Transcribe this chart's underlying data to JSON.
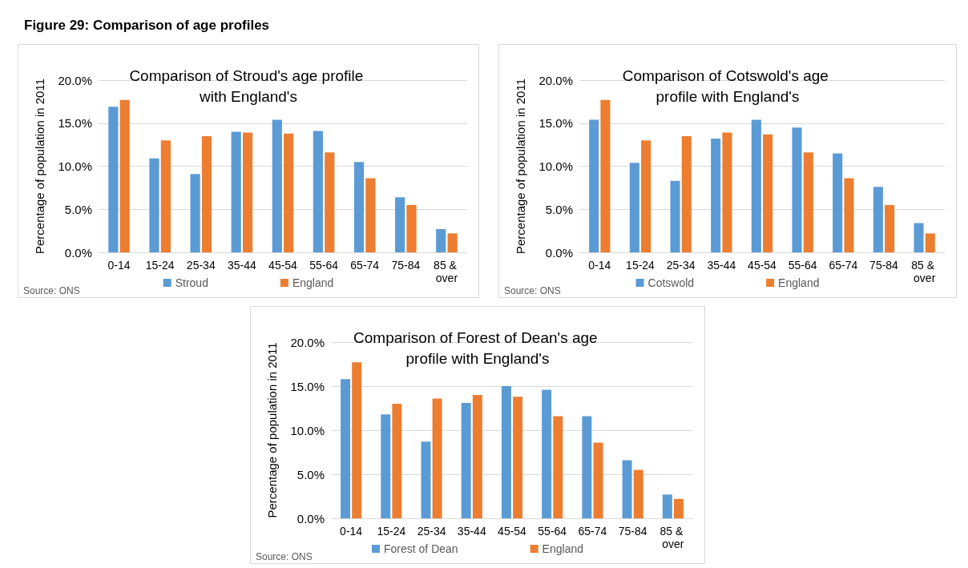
{
  "chart_data": [
    {
      "type": "bar",
      "title": "Comparison of Stroud's age profile with England's",
      "ylabel": "Percentage of population in 2011",
      "categories": [
        "0-14",
        "15-24",
        "25-34",
        "35-44",
        "45-54",
        "55-64",
        "65-74",
        "75-84",
        "85 & over"
      ],
      "series": [
        {
          "name": "Stroud",
          "color": "#5b9bd5",
          "values": [
            16.9,
            10.9,
            9.1,
            14.0,
            15.4,
            14.1,
            10.5,
            6.4,
            2.7
          ]
        },
        {
          "name": "England",
          "color": "#ed7d31",
          "values": [
            17.7,
            13.0,
            13.5,
            13.9,
            13.8,
            11.6,
            8.6,
            5.5,
            2.2
          ]
        }
      ],
      "ylim": [
        0,
        20
      ],
      "yticks": [
        {
          "value": 0,
          "label": "0.0%"
        },
        {
          "value": 5,
          "label": "5.0%"
        },
        {
          "value": 10,
          "label": "10.0%"
        },
        {
          "value": 15,
          "label": "15.0%"
        },
        {
          "value": 20,
          "label": "20.0%"
        }
      ],
      "grid": "y",
      "legend": "bottom",
      "annotations": [
        "Figure 29: Comparison of age profiles",
        "Source: ONS"
      ]
    },
    {
      "type": "bar",
      "title": "Comparison of Cotswold's age profile with England's",
      "ylabel": "Percentage of population in 2011",
      "categories": [
        "0-14",
        "15-24",
        "25-34",
        "35-44",
        "45-54",
        "55-64",
        "65-74",
        "75-84",
        "85 & over"
      ],
      "series": [
        {
          "name": "Cotswold",
          "color": "#5b9bd5",
          "values": [
            15.4,
            10.4,
            8.3,
            13.2,
            15.4,
            14.5,
            11.5,
            7.6,
            3.4
          ]
        },
        {
          "name": "England",
          "color": "#ed7d31",
          "values": [
            17.7,
            13.0,
            13.5,
            13.9,
            13.7,
            11.6,
            8.6,
            5.5,
            2.2
          ]
        }
      ],
      "ylim": [
        0,
        20
      ],
      "yticks": [
        {
          "value": 0,
          "label": "0.0%"
        },
        {
          "value": 5,
          "label": "5.0%"
        },
        {
          "value": 10,
          "label": "10.0%"
        },
        {
          "value": 15,
          "label": "15.0%"
        },
        {
          "value": 20,
          "label": "20.0%"
        }
      ],
      "grid": "y",
      "legend": "bottom",
      "annotations": [
        "Source: ONS"
      ]
    },
    {
      "type": "bar",
      "title": "Comparison of Forest of Dean's age profile with England's",
      "ylabel": "Percentage of population in 2011",
      "categories": [
        "0-14",
        "15-24",
        "25-34",
        "35-44",
        "45-54",
        "55-64",
        "65-74",
        "75-84",
        "85 & over"
      ],
      "series": [
        {
          "name": "Forest of Dean",
          "color": "#5b9bd5",
          "values": [
            15.8,
            11.8,
            8.7,
            13.1,
            15.0,
            14.6,
            11.6,
            6.6,
            2.7
          ]
        },
        {
          "name": "England",
          "color": "#ed7d31",
          "values": [
            17.7,
            13.0,
            13.6,
            14.0,
            13.8,
            11.6,
            8.6,
            5.5,
            2.2
          ]
        }
      ],
      "ylim": [
        0,
        20
      ],
      "yticks": [
        {
          "value": 0,
          "label": "0.0%"
        },
        {
          "value": 5,
          "label": "5.0%"
        },
        {
          "value": 10,
          "label": "10.0%"
        },
        {
          "value": 15,
          "label": "15.0%"
        },
        {
          "value": 20,
          "label": "20.0%"
        }
      ],
      "grid": "y",
      "legend": "bottom",
      "annotations": [
        "Source: ONS"
      ]
    }
  ]
}
